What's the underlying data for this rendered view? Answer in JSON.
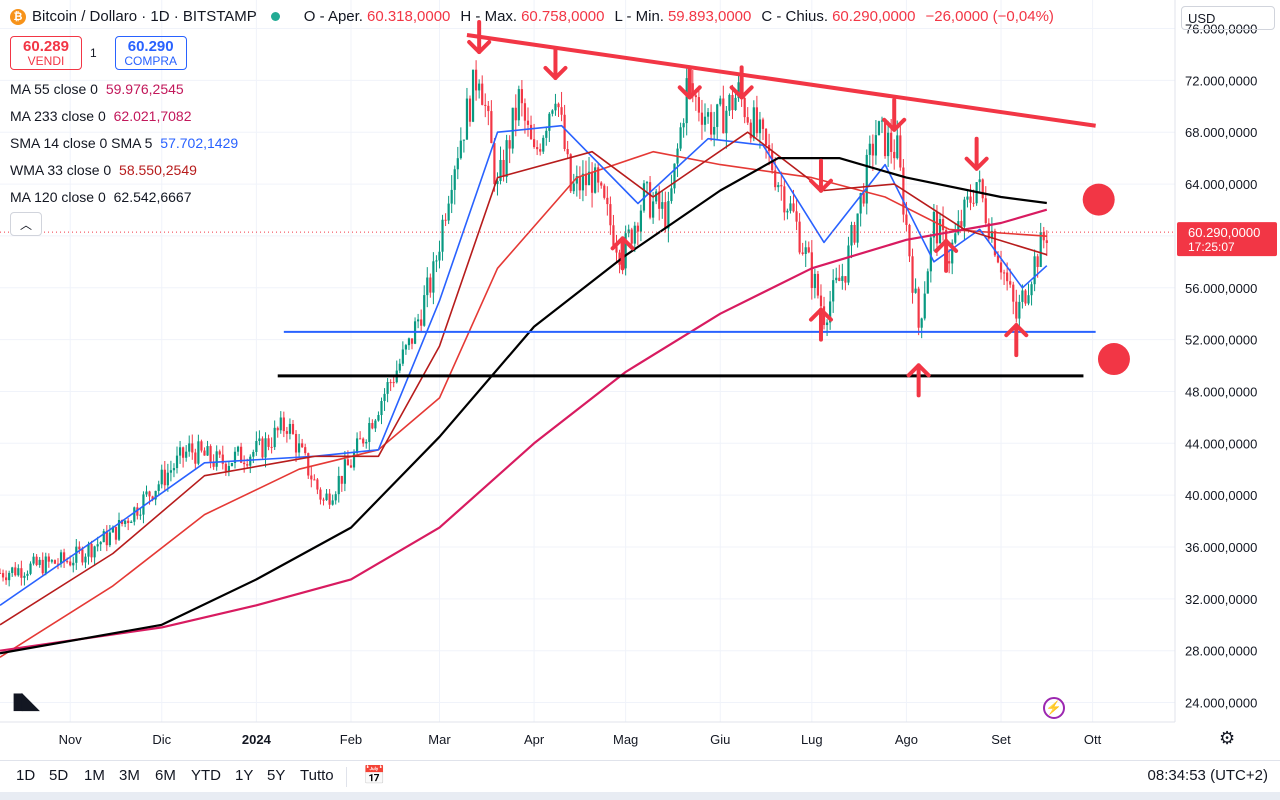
{
  "header": {
    "symbol": "Bitcoin / Dollaro · 1D · BITSTAMP",
    "open_label": "O - Aper.",
    "open": "60.318,0000",
    "high_label": "H - Max.",
    "high": "60.758,0000",
    "low_label": "L - Min.",
    "low": "59.893,0000",
    "close_label": "C - Chius.",
    "close": "60.290,0000",
    "change": "−26,0000 (−0,04%)"
  },
  "trade": {
    "sell_price": "60.289",
    "sell_label": "VENDI",
    "spread": "1",
    "buy_price": "60.290",
    "buy_label": "COMPRA"
  },
  "indicators": [
    {
      "name": "MA 55 close 0",
      "value": "59.976,2545",
      "color": "#c2185b"
    },
    {
      "name": "MA 233 close 0",
      "value": "62.021,7082",
      "color": "#c2185b"
    },
    {
      "name": "SMA 14 close 0 SMA 5",
      "value": "57.702,1429",
      "color": "#2962ff"
    },
    {
      "name": "WMA 33 close 0",
      "value": "58.550,2549",
      "color": "#b71c1c"
    },
    {
      "name": "MA 120 close 0",
      "value": "62.542,6667",
      "color": "#131722"
    }
  ],
  "currency": "USD",
  "last_price_label": {
    "price": "60.290,0000",
    "countdown": "17:25:07"
  },
  "periods": [
    "1D",
    "5D",
    "1M",
    "3M",
    "6M",
    "YTD",
    "1Y",
    "5Y",
    "Tutto"
  ],
  "clock": "08:34:53 (UTC+2)",
  "chart_data": {
    "type": "candlestick",
    "title": "Bitcoin / Dollaro · 1D · BITSTAMP",
    "y_ticks": [
      "76.000,0000",
      "72.000,0000",
      "68.000,0000",
      "64.000,0000",
      "60.000,0000",
      "56.000,0000",
      "52.000,0000",
      "48.000,0000",
      "44.000,0000",
      "40.000,0000",
      "36.000,0000",
      "32.000,0000",
      "28.000,0000",
      "24.000,0000"
    ],
    "y_tick_values": [
      76000,
      72000,
      68000,
      64000,
      60000,
      56000,
      52000,
      48000,
      44000,
      40000,
      36000,
      32000,
      28000,
      24000
    ],
    "ylim": [
      22500,
      78200
    ],
    "x_ticks": [
      "Nov",
      "Dic",
      "2024",
      "Feb",
      "Mar",
      "Apr",
      "Mag",
      "Giu",
      "Lug",
      "Ago",
      "Set",
      "Ott"
    ],
    "x_tick_dates": [
      "2023-11-01",
      "2023-12-01",
      "2024-01-01",
      "2024-02-01",
      "2024-03-01",
      "2024-04-01",
      "2024-05-01",
      "2024-06-01",
      "2024-07-01",
      "2024-08-01",
      "2024-09-01",
      "2024-10-01"
    ],
    "xlim": [
      "2023-10-09",
      "2024-10-28"
    ],
    "price_anchors": [
      [
        "2023-10-09",
        34000
      ],
      [
        "2023-10-20",
        34500
      ],
      [
        "2023-11-01",
        35000
      ],
      [
        "2023-11-15",
        37000
      ],
      [
        "2023-12-04",
        42000
      ],
      [
        "2023-12-10",
        43500
      ],
      [
        "2023-12-20",
        42500
      ],
      [
        "2024-01-02",
        43500
      ],
      [
        "2024-01-11",
        45500
      ],
      [
        "2024-01-23",
        39500
      ],
      [
        "2024-02-01",
        42500
      ],
      [
        "2024-02-10",
        47000
      ],
      [
        "2024-02-20",
        51500
      ],
      [
        "2024-02-28",
        57000
      ],
      [
        "2024-03-05",
        65000
      ],
      [
        "2024-03-14",
        73000
      ],
      [
        "2024-03-20",
        63500
      ],
      [
        "2024-03-27",
        70500
      ],
      [
        "2024-04-01",
        66000
      ],
      [
        "2024-04-08",
        71500
      ],
      [
        "2024-04-13",
        63500
      ],
      [
        "2024-04-20",
        64500
      ],
      [
        "2024-04-30",
        58500
      ],
      [
        "2024-05-07",
        63000
      ],
      [
        "2024-05-15",
        61500
      ],
      [
        "2024-05-21",
        71500
      ],
      [
        "2024-05-30",
        68500
      ],
      [
        "2024-06-07",
        71000
      ],
      [
        "2024-06-18",
        65500
      ],
      [
        "2024-06-25",
        61500
      ],
      [
        "2024-07-05",
        54000
      ],
      [
        "2024-07-12",
        57500
      ],
      [
        "2024-07-22",
        68000
      ],
      [
        "2024-07-29",
        66500
      ],
      [
        "2024-08-05",
        53000
      ],
      [
        "2024-08-10",
        61000
      ],
      [
        "2024-08-15",
        58500
      ],
      [
        "2024-08-24",
        64200
      ],
      [
        "2024-09-01",
        58000
      ],
      [
        "2024-09-06",
        53700
      ],
      [
        "2024-09-12",
        58000
      ],
      [
        "2024-09-16",
        60290
      ]
    ],
    "series": [
      {
        "name": "MA 55 close 0",
        "color": "#e53935",
        "values": [
          [
            "2023-10-09",
            27500
          ],
          [
            "2023-11-15",
            33000
          ],
          [
            "2023-12-15",
            38500
          ],
          [
            "2024-01-15",
            42000
          ],
          [
            "2024-02-10",
            43500
          ],
          [
            "2024-03-01",
            47500
          ],
          [
            "2024-03-20",
            57500
          ],
          [
            "2024-04-15",
            64500
          ],
          [
            "2024-05-10",
            66500
          ],
          [
            "2024-06-01",
            65500
          ],
          [
            "2024-07-01",
            64500
          ],
          [
            "2024-07-25",
            63000
          ],
          [
            "2024-08-15",
            60500
          ],
          [
            "2024-09-16",
            59976
          ]
        ]
      },
      {
        "name": "MA 233 close 0",
        "color": "#d81b60",
        "values": [
          [
            "2023-10-09",
            28000
          ],
          [
            "2023-12-01",
            29800
          ],
          [
            "2024-01-01",
            31500
          ],
          [
            "2024-02-01",
            33500
          ],
          [
            "2024-03-01",
            37500
          ],
          [
            "2024-04-01",
            44000
          ],
          [
            "2024-05-01",
            49500
          ],
          [
            "2024-06-01",
            54000
          ],
          [
            "2024-07-01",
            57500
          ],
          [
            "2024-08-01",
            59700
          ],
          [
            "2024-09-01",
            61000
          ],
          [
            "2024-09-16",
            62022
          ]
        ]
      },
      {
        "name": "SMA 14 close 0 SMA 5",
        "color": "#2962ff",
        "values": [
          [
            "2023-10-09",
            31500
          ],
          [
            "2023-11-15",
            37500
          ],
          [
            "2023-12-15",
            42500
          ],
          [
            "2024-01-20",
            43000
          ],
          [
            "2024-02-10",
            43500
          ],
          [
            "2024-03-01",
            55000
          ],
          [
            "2024-03-20",
            68000
          ],
          [
            "2024-04-10",
            68500
          ],
          [
            "2024-05-05",
            62500
          ],
          [
            "2024-05-28",
            67500
          ],
          [
            "2024-06-15",
            67000
          ],
          [
            "2024-07-05",
            59500
          ],
          [
            "2024-07-25",
            65500
          ],
          [
            "2024-08-10",
            58000
          ],
          [
            "2024-08-25",
            60500
          ],
          [
            "2024-09-08",
            56000
          ],
          [
            "2024-09-16",
            57702
          ]
        ]
      },
      {
        "name": "WMA 33 close 0",
        "color": "#b71c1c",
        "values": [
          [
            "2023-10-09",
            30000
          ],
          [
            "2023-11-15",
            35500
          ],
          [
            "2023-12-15",
            41500
          ],
          [
            "2024-01-20",
            43000
          ],
          [
            "2024-02-10",
            43000
          ],
          [
            "2024-03-01",
            51500
          ],
          [
            "2024-03-20",
            64500
          ],
          [
            "2024-04-20",
            66500
          ],
          [
            "2024-05-10",
            63000
          ],
          [
            "2024-06-10",
            68000
          ],
          [
            "2024-07-05",
            63500
          ],
          [
            "2024-07-28",
            64000
          ],
          [
            "2024-08-20",
            60500
          ],
          [
            "2024-09-16",
            58550
          ]
        ]
      },
      {
        "name": "MA 120 close 0",
        "color": "#000000",
        "values": [
          [
            "2023-10-09",
            27800
          ],
          [
            "2023-12-01",
            30000
          ],
          [
            "2024-01-01",
            33500
          ],
          [
            "2024-02-01",
            37500
          ],
          [
            "2024-03-01",
            44500
          ],
          [
            "2024-04-01",
            53000
          ],
          [
            "2024-05-01",
            58500
          ],
          [
            "2024-06-01",
            63500
          ],
          [
            "2024-06-20",
            66000
          ],
          [
            "2024-07-10",
            66000
          ],
          [
            "2024-08-01",
            64500
          ],
          [
            "2024-09-01",
            63000
          ],
          [
            "2024-09-16",
            62543
          ]
        ]
      }
    ],
    "annotations": {
      "resistance_line": {
        "color": "#f23645",
        "from": [
          "2024-03-10",
          75500
        ],
        "to": [
          "2024-10-02",
          68500
        ]
      },
      "blue_support": {
        "color": "#2962ff",
        "from": [
          "2024-01-10",
          52600
        ],
        "to": [
          "2024-10-02",
          52600
        ]
      },
      "black_support": {
        "color": "#000000",
        "from": [
          "2024-01-08",
          49200
        ],
        "to": [
          "2024-09-28",
          49200
        ]
      },
      "arrows_down": [
        [
          "2024-03-14",
          76500
        ],
        [
          "2024-04-08",
          74500
        ],
        [
          "2024-05-22",
          73000
        ],
        [
          "2024-06-08",
          73000
        ],
        [
          "2024-07-28",
          70500
        ],
        [
          "2024-08-24",
          67500
        ],
        [
          "2024-07-04",
          65800
        ]
      ],
      "arrows_up": [
        [
          "2024-04-30",
          57500
        ],
        [
          "2024-07-04",
          52000
        ],
        [
          "2024-08-05",
          47700
        ],
        [
          "2024-08-14",
          57300
        ],
        [
          "2024-09-06",
          50800
        ]
      ],
      "red_dots": [
        [
          "2024-10-03",
          62800
        ],
        [
          "2024-10-08",
          50500
        ]
      ]
    },
    "last_price": 60290
  }
}
